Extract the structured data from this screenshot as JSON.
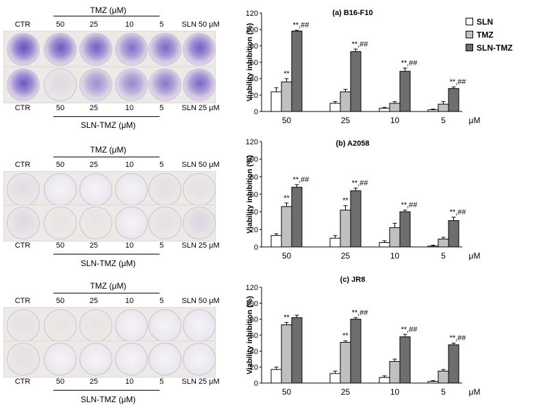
{
  "legend": [
    {
      "name": "SLN",
      "color": "#ffffff"
    },
    {
      "name": "TMZ",
      "color": "#c0c0c0"
    },
    {
      "name": "SLN-TMZ",
      "color": "#6e6e6e"
    }
  ],
  "photos": {
    "ctr_label": "CTR",
    "top_group_label": "TMZ (μM)",
    "bottom_group_label": "SLN-TMZ (μM)",
    "dose_labels": [
      "50",
      "25",
      "10",
      "5"
    ],
    "sln_top_label": "SLN 50 μM",
    "sln_bottom_label": "SLN 25 μM"
  },
  "chart_data": [
    {
      "type": "bar",
      "title": "(a) B16-F10",
      "categories": [
        "50",
        "25",
        "10",
        "5"
      ],
      "xunit": "μM",
      "ylabel": "Viability inhibition (%)",
      "ylim": [
        0,
        120
      ],
      "yticks": [
        0,
        20,
        40,
        60,
        80,
        100,
        120
      ],
      "series": [
        {
          "name": "SLN",
          "values": [
            24,
            10,
            4,
            2
          ],
          "errors": [
            5,
            2,
            1,
            1
          ]
        },
        {
          "name": "TMZ",
          "values": [
            36,
            24,
            10,
            9
          ],
          "errors": [
            4,
            3,
            2,
            3
          ]
        },
        {
          "name": "SLN-TMZ",
          "values": [
            98,
            73,
            49,
            28
          ],
          "errors": [
            1,
            3,
            4,
            2
          ]
        }
      ],
      "annotations": [
        {
          "category": "50",
          "series": "TMZ",
          "text": "**"
        },
        {
          "category": "50",
          "series": "SLN-TMZ",
          "text": "**,##"
        },
        {
          "category": "25",
          "series": "SLN-TMZ",
          "text": "**,##"
        },
        {
          "category": "10",
          "series": "SLN-TMZ",
          "text": "**,##"
        },
        {
          "category": "5",
          "series": "SLN-TMZ",
          "text": "**,##"
        }
      ]
    },
    {
      "type": "bar",
      "title": "(b) A2058",
      "categories": [
        "50",
        "25",
        "10",
        "5"
      ],
      "xunit": "μM",
      "ylabel": "Viability inhibition (%)",
      "ylim": [
        0,
        120
      ],
      "yticks": [
        0,
        20,
        40,
        60,
        80,
        100,
        120
      ],
      "series": [
        {
          "name": "SLN",
          "values": [
            13,
            10,
            5,
            1
          ],
          "errors": [
            2,
            3,
            2,
            1
          ]
        },
        {
          "name": "TMZ",
          "values": [
            46,
            42,
            22,
            9
          ],
          "errors": [
            4,
            5,
            5,
            2
          ]
        },
        {
          "name": "SLN-TMZ",
          "values": [
            68,
            64,
            40,
            30
          ],
          "errors": [
            3,
            3,
            2,
            4
          ]
        }
      ],
      "annotations": [
        {
          "category": "50",
          "series": "TMZ",
          "text": "**"
        },
        {
          "category": "50",
          "series": "SLN-TMZ",
          "text": "**,##"
        },
        {
          "category": "25",
          "series": "TMZ",
          "text": "**"
        },
        {
          "category": "25",
          "series": "SLN-TMZ",
          "text": "**,##"
        },
        {
          "category": "10",
          "series": "SLN-TMZ",
          "text": "**,##"
        },
        {
          "category": "5",
          "series": "SLN-TMZ",
          "text": "**,##"
        }
      ]
    },
    {
      "type": "bar",
      "title": "(c) JR8",
      "categories": [
        "50",
        "25",
        "10",
        "5"
      ],
      "xunit": "μM",
      "ylabel": "Viability inhibition (%)",
      "ylim": [
        0,
        120
      ],
      "yticks": [
        0,
        20,
        40,
        60,
        80,
        100,
        120
      ],
      "series": [
        {
          "name": "SLN",
          "values": [
            17,
            12,
            7,
            2
          ],
          "errors": [
            3,
            3,
            2,
            1
          ]
        },
        {
          "name": "TMZ",
          "values": [
            73,
            51,
            27,
            15
          ],
          "errors": [
            3,
            2,
            3,
            2
          ]
        },
        {
          "name": "SLN-TMZ",
          "values": [
            82,
            80,
            58,
            48
          ],
          "errors": [
            3,
            2,
            3,
            2
          ]
        }
      ],
      "annotations": [
        {
          "category": "50",
          "series": "TMZ",
          "text": "**"
        },
        {
          "category": "25",
          "series": "TMZ",
          "text": "**"
        },
        {
          "category": "25",
          "series": "SLN-TMZ",
          "text": "**,##"
        },
        {
          "category": "10",
          "series": "SLN-TMZ",
          "text": "**,##"
        },
        {
          "category": "5",
          "series": "SLN-TMZ",
          "text": "**,##"
        }
      ]
    }
  ]
}
